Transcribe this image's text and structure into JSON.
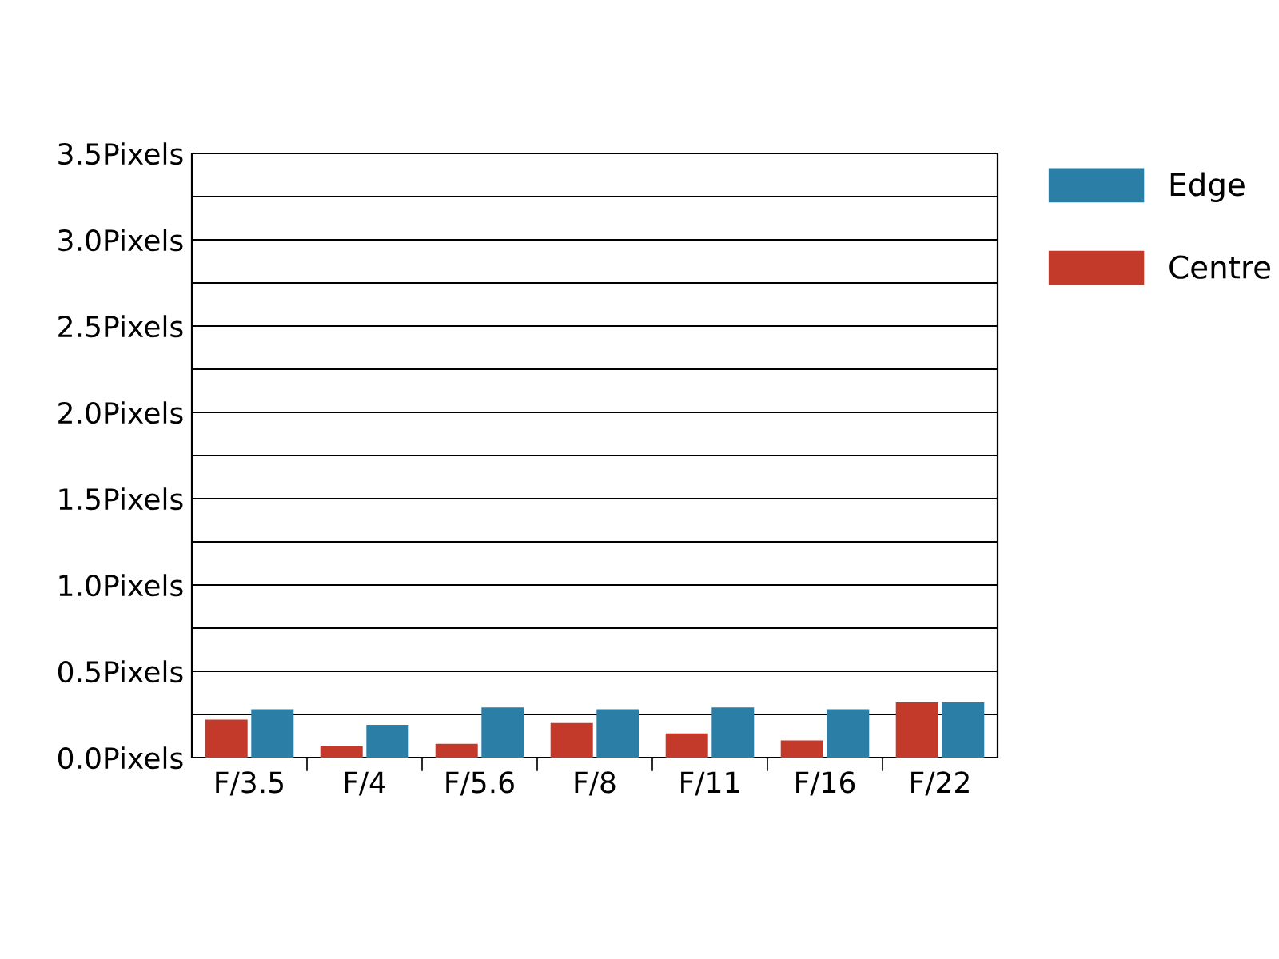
{
  "chart_data": {
    "type": "bar",
    "categories": [
      "F/3.5",
      "F/4",
      "F/5.6",
      "F/8",
      "F/11",
      "F/16",
      "F/22"
    ],
    "series": [
      {
        "name": "Centre",
        "color": "#c43a2a",
        "values": [
          0.22,
          0.07,
          0.08,
          0.2,
          0.14,
          0.1,
          0.32
        ]
      },
      {
        "name": "Edge",
        "color": "#2b7fa6",
        "values": [
          0.28,
          0.19,
          0.29,
          0.28,
          0.29,
          0.28,
          0.32
        ]
      }
    ],
    "ylim": [
      0,
      3.5
    ],
    "yticks": [
      {
        "value": 0,
        "label": "0.0Pixels"
      },
      {
        "value": 0.25,
        "label": null
      },
      {
        "value": 0.5,
        "label": "0.5Pixels"
      },
      {
        "value": 0.75,
        "label": null
      },
      {
        "value": 1.0,
        "label": "1.0Pixels"
      },
      {
        "value": 1.25,
        "label": null
      },
      {
        "value": 1.5,
        "label": "1.5Pixels"
      },
      {
        "value": 1.75,
        "label": null
      },
      {
        "value": 2.0,
        "label": "2.0Pixels"
      },
      {
        "value": 2.25,
        "label": null
      },
      {
        "value": 2.5,
        "label": "2.5Pixels"
      },
      {
        "value": 2.75,
        "label": null
      },
      {
        "value": 3.0,
        "label": "3.0Pixels"
      },
      {
        "value": 3.25,
        "label": null
      },
      {
        "value": 3.5,
        "label": "3.5Pixels"
      }
    ],
    "grid": "y",
    "legend": "top right"
  }
}
